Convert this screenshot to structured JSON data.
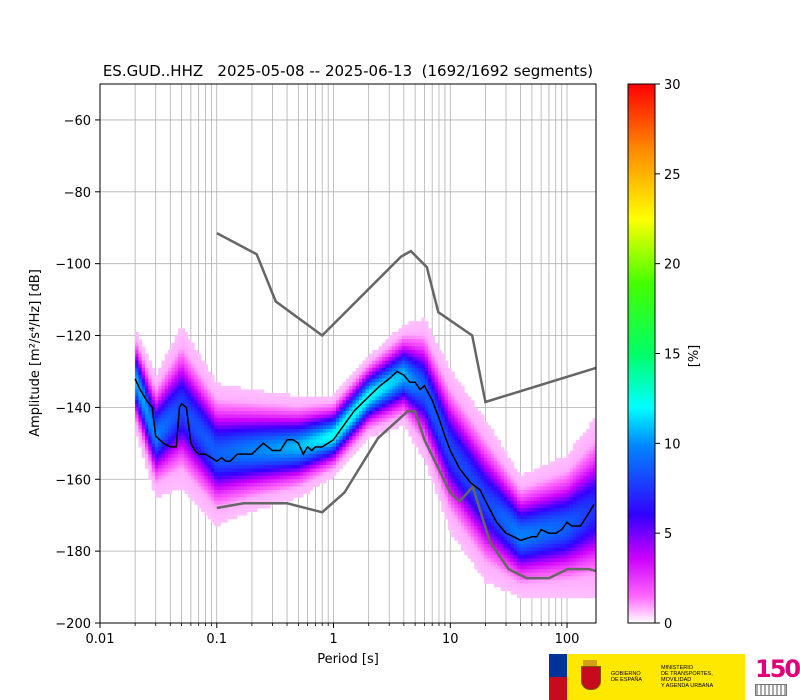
{
  "chart_data": {
    "type": "heatmap",
    "title": "ES.GUD..HHZ   2025-05-08 -- 2025-06-13  (1692/1692 segments)",
    "xlabel": "Period [s]",
    "ylabel": "Amplitude [m²/s⁴/Hz] [dB]",
    "xscale": "log",
    "xlim": [
      0.01,
      177
    ],
    "ylim": [
      -200,
      -50
    ],
    "xticks": [
      {
        "value": 0.01,
        "label": "0.01"
      },
      {
        "value": 0.1,
        "label": "0.1"
      },
      {
        "value": 1,
        "label": "1"
      },
      {
        "value": 10,
        "label": "10"
      },
      {
        "value": 100,
        "label": "100"
      }
    ],
    "yticks": [
      {
        "value": -60,
        "label": "−60"
      },
      {
        "value": -80,
        "label": "−80"
      },
      {
        "value": -100,
        "label": "−100"
      },
      {
        "value": -120,
        "label": "−120"
      },
      {
        "value": -140,
        "label": "−140"
      },
      {
        "value": -160,
        "label": "−160"
      },
      {
        "value": -180,
        "label": "−180"
      },
      {
        "value": -200,
        "label": "−200"
      }
    ],
    "grid": true,
    "colorbar": {
      "label": "[%]",
      "range": [
        0,
        30
      ],
      "ticks": [
        {
          "value": 0,
          "label": "0"
        },
        {
          "value": 5,
          "label": "5"
        },
        {
          "value": 10,
          "label": "10"
        },
        {
          "value": 15,
          "label": "15"
        },
        {
          "value": 20,
          "label": "20"
        },
        {
          "value": 25,
          "label": "25"
        },
        {
          "value": 30,
          "label": "30"
        }
      ]
    },
    "mode_curve": {
      "x": [
        0.02,
        0.022,
        0.025,
        0.028,
        0.03,
        0.035,
        0.04,
        0.045,
        0.048,
        0.05,
        0.055,
        0.06,
        0.065,
        0.07,
        0.08,
        0.09,
        0.1,
        0.11,
        0.12,
        0.13,
        0.15,
        0.17,
        0.2,
        0.25,
        0.3,
        0.35,
        0.4,
        0.45,
        0.5,
        0.55,
        0.6,
        0.65,
        0.7,
        0.8,
        1,
        1.5,
        2,
        2.5,
        3,
        3.5,
        4,
        4.5,
        5,
        5.5,
        6,
        7,
        8,
        9,
        10,
        12,
        15,
        18,
        20,
        25,
        30,
        35,
        40,
        50,
        55,
        60,
        70,
        80,
        90,
        100,
        110,
        130,
        150,
        170
      ],
      "y": [
        -132,
        -135,
        -138,
        -140,
        -148,
        -150,
        -151,
        -151,
        -140,
        -139,
        -140,
        -150,
        -152,
        -153,
        -153,
        -154,
        -155,
        -154,
        -155,
        -155,
        -153,
        -153,
        -153,
        -150,
        -152,
        -152,
        -149,
        -149,
        -150,
        -153,
        -151,
        -152,
        -151,
        -151,
        -149,
        -141,
        -137,
        -134,
        -132,
        -130,
        -131,
        -133,
        -133,
        -135,
        -134,
        -138,
        -143,
        -148,
        -152,
        -157,
        -161,
        -163,
        -166,
        -172,
        -175,
        -176,
        -177,
        -176,
        -176,
        -174,
        -175,
        -175,
        -174,
        -172,
        -173,
        -173,
        -170,
        -167
      ]
    },
    "nhnm": {
      "x": [
        0.1,
        0.22,
        0.32,
        0.8,
        3.8,
        4.6,
        6.3,
        7.9,
        15.4,
        20,
        177
      ],
      "y": [
        -91.5,
        -97.4,
        -110.5,
        -120,
        -98,
        -96.5,
        -101,
        -113.5,
        -120,
        -138.5,
        -129
      ]
    },
    "nlnm": {
      "x": [
        0.1,
        0.17,
        0.4,
        0.8,
        1.24,
        2.4,
        4.3,
        5,
        6,
        10,
        12,
        15.6,
        21.9,
        31.6,
        45,
        70,
        101,
        154,
        177
      ],
      "y": [
        -168,
        -166.7,
        -166.7,
        -169.2,
        -163.7,
        -148.6,
        -141.1,
        -141.1,
        -149,
        -163.8,
        -166.2,
        -162.1,
        -177.5,
        -185,
        -187.5,
        -187.5,
        -185,
        -185,
        -185.5
      ]
    },
    "density_bands": [
      {
        "x": [
          0.02,
          0.03,
          0.05,
          0.1,
          0.2,
          0.5,
          1,
          2,
          4,
          6,
          10,
          20,
          40,
          100,
          177
        ],
        "y": [
          -132,
          -148,
          -140,
          -153,
          -152,
          -151,
          -148,
          -137,
          -131,
          -135,
          -152,
          -166,
          -176,
          -173,
          -168
        ],
        "spread": [
          5,
          6,
          8,
          7,
          6,
          5,
          4,
          4,
          5,
          7,
          8,
          8,
          6,
          7,
          9
        ]
      }
    ]
  },
  "footer": {
    "gov_line1": "GOBIERNO",
    "gov_line2": "DE ESPAÑA",
    "min_line1": "MINISTERIO",
    "min_line2": "DE TRANSPORTES, MOVILIDAD",
    "min_line3": "Y AGENDA URBANA",
    "logo_number": "150"
  },
  "colors": {
    "grid": "#b0b0b0",
    "noise_model": "#666666",
    "mode_curve": "#000000"
  }
}
